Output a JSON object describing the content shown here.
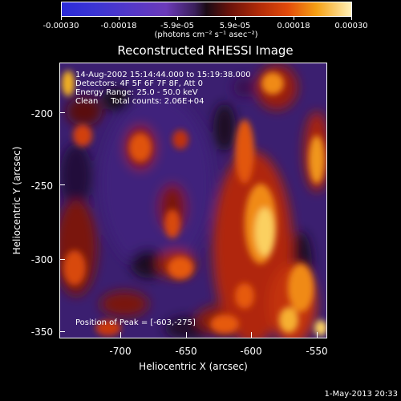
{
  "colorbar": {
    "ticks": [
      "-0.00030",
      "-0.00018",
      "-5.9e-05",
      "5.9e-05",
      "0.00018",
      "0.00030"
    ],
    "units": "(photons cm⁻² s⁻¹ asec⁻²)"
  },
  "title": "Reconstructed RHESSI Image",
  "info": {
    "line1": "14-Aug-2002 15:14:44.000 to 15:19:38.000",
    "line2": "Detectors: 4F 5F 6F 7F 8F, Att 0",
    "line3": "Energy Range: 25.0 - 50.0 keV",
    "line4": "Clean     Total counts: 2.06E+04",
    "peak": "Position of Peak = [-603,-275]"
  },
  "axes": {
    "xlabel": "Heliocentric X (arcsec)",
    "ylabel": "Heliocentric Y (arcsec)",
    "xticks": [
      "-700",
      "-650",
      "-600",
      "-550"
    ],
    "yticks": [
      "-200",
      "-250",
      "-300",
      "-350"
    ]
  },
  "timestamp": "1-May-2013 20:33"
}
